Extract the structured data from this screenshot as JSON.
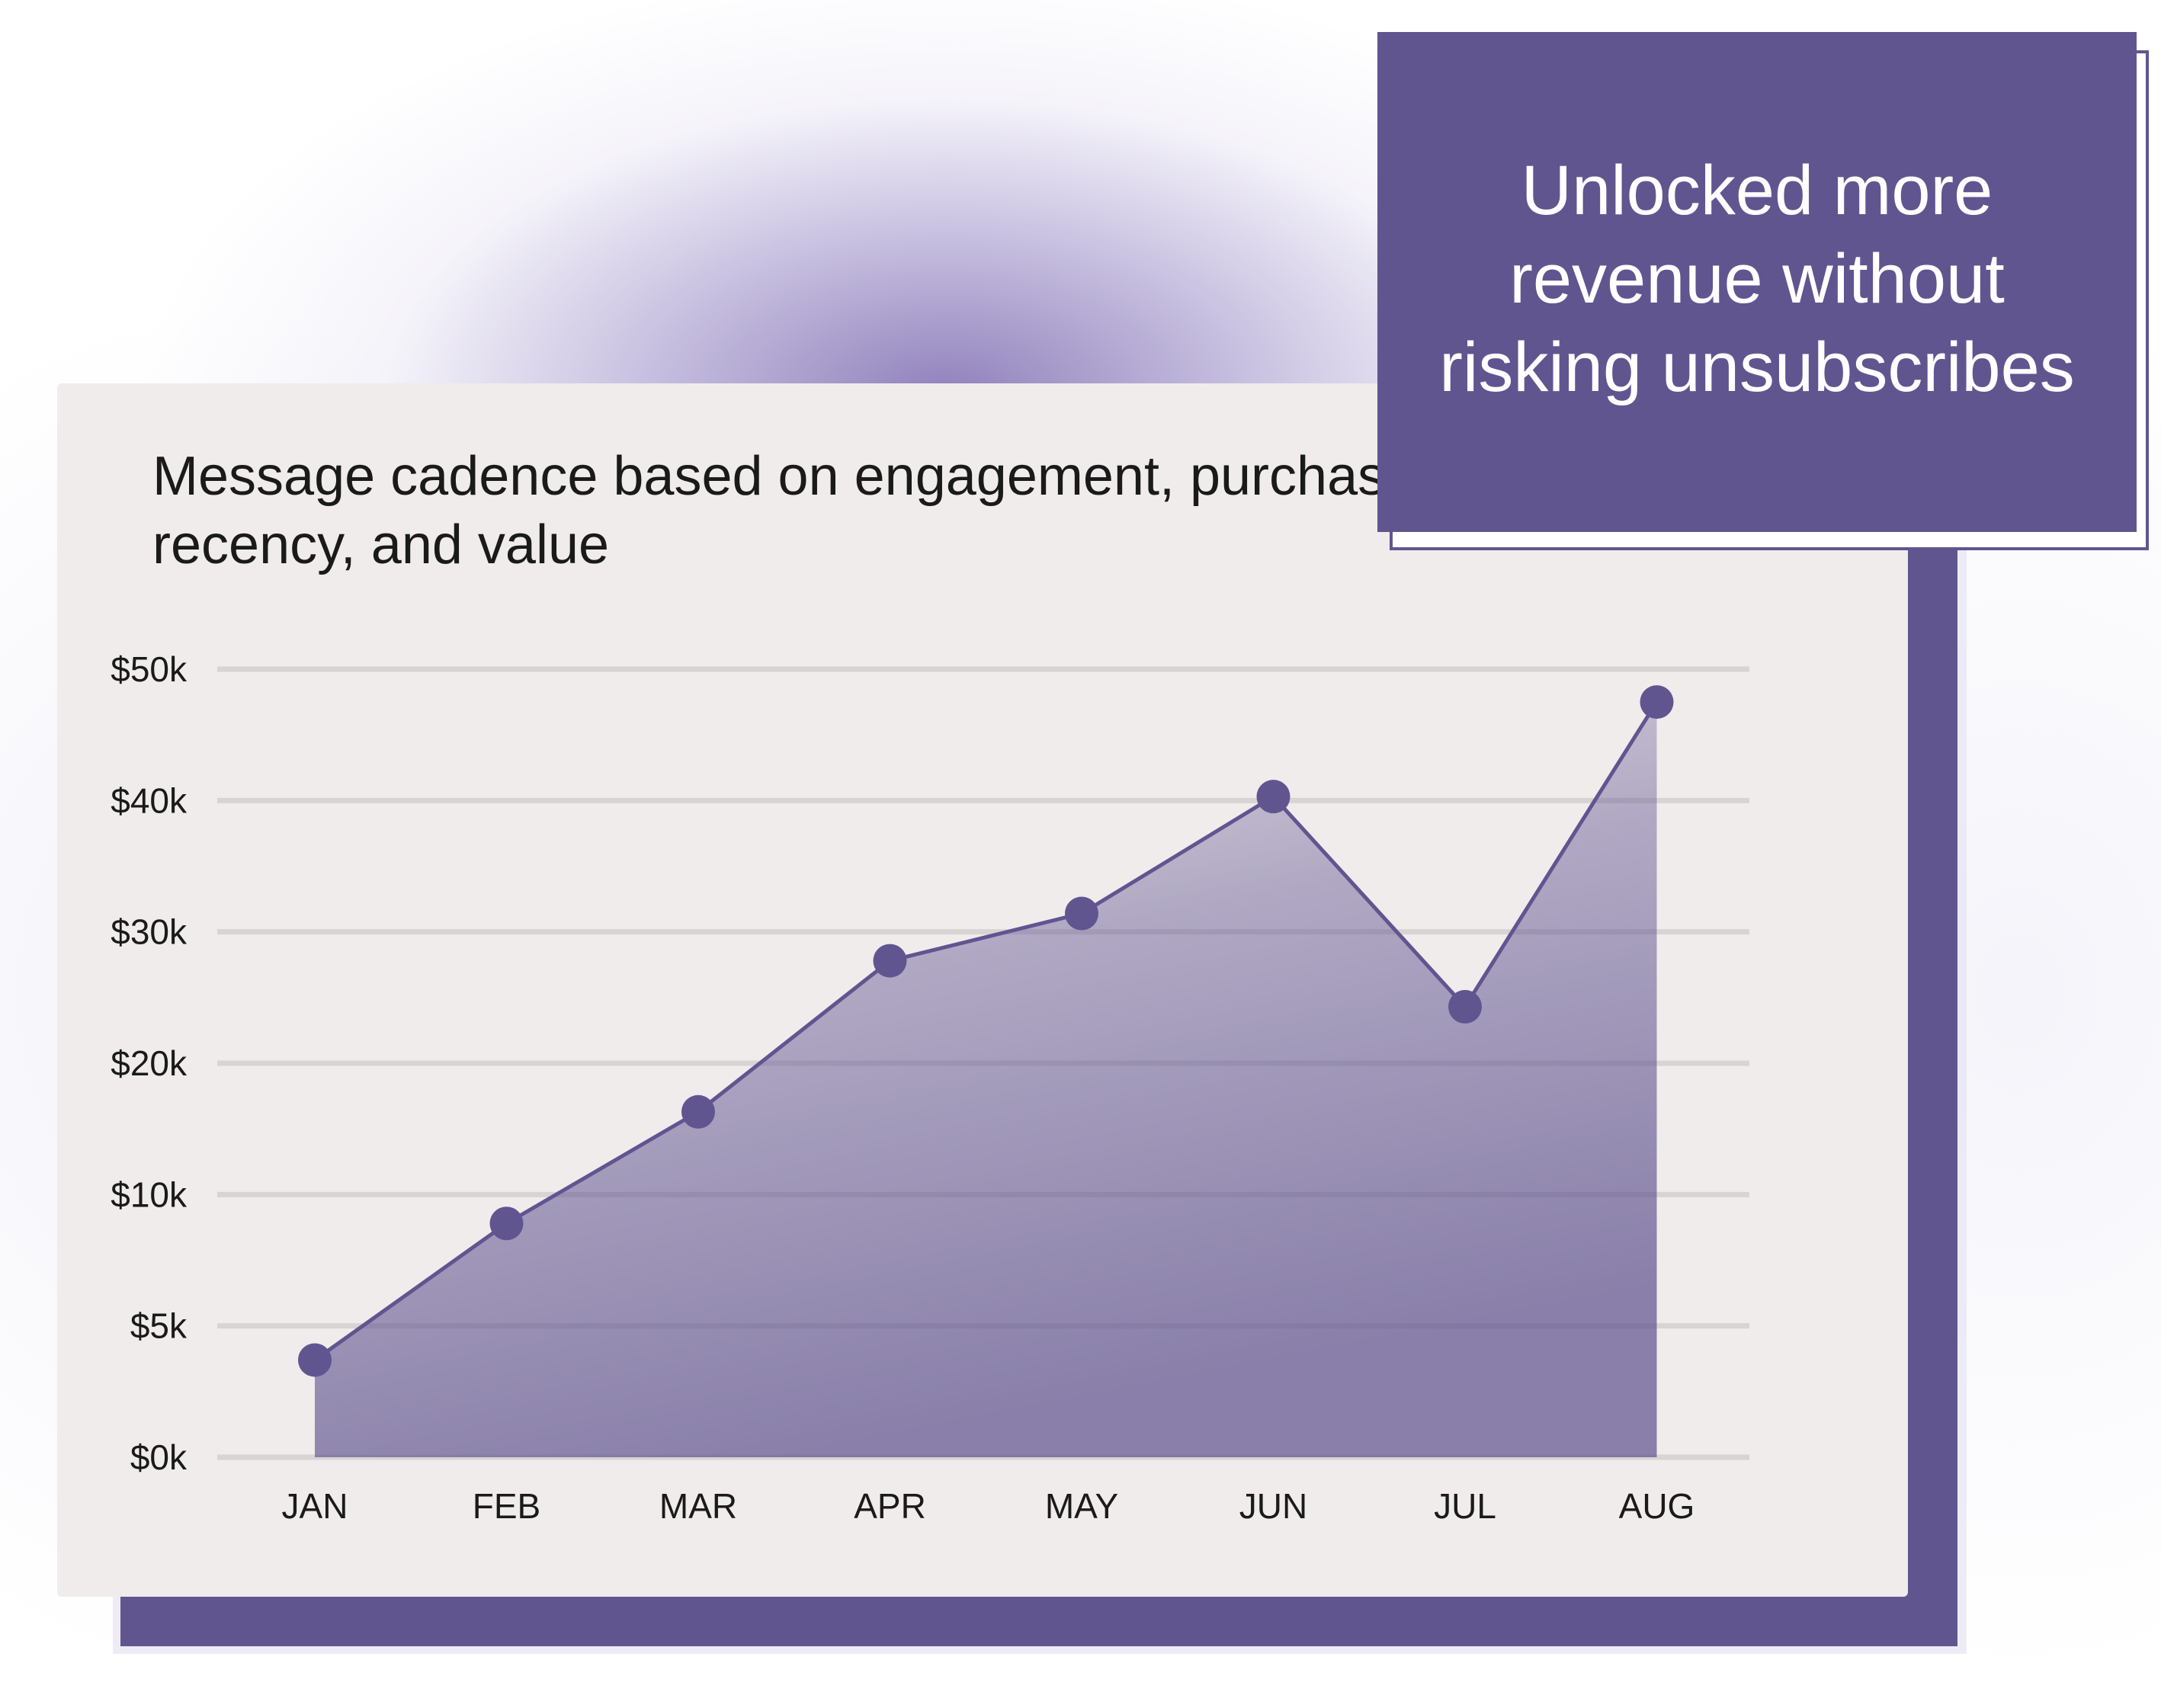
{
  "callout": {
    "text": "Unlocked more revenue without risking unsubscribes"
  },
  "colors": {
    "accent": "#615590",
    "card_background": "#f0ecec",
    "gridline": "#d9d4d4"
  },
  "chart_data": {
    "type": "area",
    "title": "Message cadence based on engagement, purchase recency, and value",
    "xlabel": "",
    "ylabel": "",
    "categories": [
      "JAN",
      "FEB",
      "MAR",
      "APR",
      "MAY",
      "JUN",
      "JUL",
      "AUG"
    ],
    "y_ticks": [
      0,
      5,
      10,
      20,
      30,
      40,
      50
    ],
    "y_tick_labels": [
      "$0k",
      "$5k",
      "$10k",
      "$20k",
      "$30k",
      "$40k",
      "$50k"
    ],
    "y_scale_note": "tick labels are evenly spaced",
    "series": [
      {
        "values": [
          3.7,
          8.9,
          16.3,
          27.8,
          31.4,
          40.3,
          24.3,
          47.5
        ]
      }
    ],
    "grid": true,
    "legend": "none"
  }
}
